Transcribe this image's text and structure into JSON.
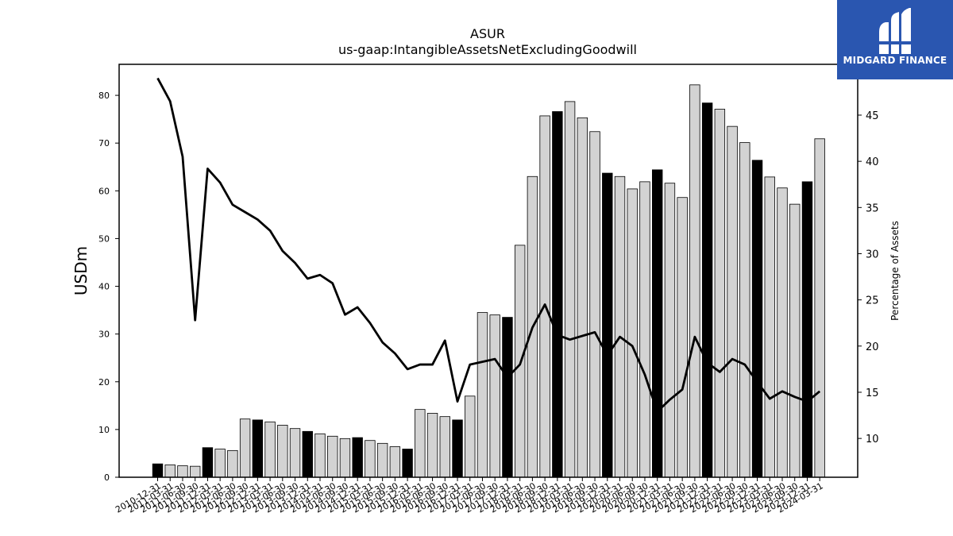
{
  "brand": {
    "name": "MIDGARD FINANCE",
    "icon": "midgard-finance-logo-icon"
  },
  "chart_data": {
    "type": "bar",
    "title": "ASUR",
    "subtitle": "us-gaap:IntangibleAssetsNetExcludingGoodwill",
    "ylabel": "USDm",
    "y2label": "Percentage of Assets",
    "ylim": [
      0,
      86.5
    ],
    "y2lim": [
      5.8,
      50.5
    ],
    "yticks": [
      0,
      10,
      20,
      30,
      40,
      50,
      60,
      70,
      80
    ],
    "y2ticks": [
      10,
      15,
      20,
      25,
      30,
      35,
      40,
      45
    ],
    "grid": false,
    "colors": {
      "bar_default": "#d3d3d3",
      "bar_highlight": "#000000",
      "line": "#000000",
      "edge": "#000000"
    },
    "categories": [
      "2010-12-31",
      "2011-03-31",
      "2011-06-30",
      "2011-09-30",
      "2011-12-31",
      "2012-03-31",
      "2012-06-30",
      "2012-09-30",
      "2012-12-31",
      "2013-03-31",
      "2013-06-30",
      "2013-09-30",
      "2013-12-31",
      "2014-03-31",
      "2014-06-30",
      "2014-09-30",
      "2014-12-31",
      "2015-03-31",
      "2015-06-30",
      "2015-09-30",
      "2015-12-31",
      "2016-03-31",
      "2016-06-30",
      "2016-09-30",
      "2016-12-31",
      "2017-03-31",
      "2017-06-30",
      "2017-09-30",
      "2017-12-31",
      "2018-03-31",
      "2018-06-30",
      "2018-09-30",
      "2018-12-31",
      "2019-03-31",
      "2019-06-30",
      "2019-09-30",
      "2019-12-31",
      "2020-03-31",
      "2020-06-30",
      "2020-09-30",
      "2020-12-31",
      "2021-03-31",
      "2021-06-30",
      "2021-09-30",
      "2021-12-31",
      "2022-03-31",
      "2022-06-30",
      "2022-09-30",
      "2022-12-31",
      "2023-03-31",
      "2023-06-30",
      "2023-09-30",
      "2023-12-31",
      "2024-03-31"
    ],
    "series": [
      {
        "kind": "bar",
        "axis": "left",
        "values": [
          2.8,
          2.6,
          2.4,
          2.3,
          6.2,
          5.9,
          5.6,
          12.2,
          12.0,
          11.6,
          10.9,
          10.2,
          9.6,
          9.1,
          8.6,
          8.1,
          8.3,
          7.7,
          7.1,
          6.4,
          5.9,
          14.2,
          13.4,
          12.7,
          12.0,
          17.0,
          34.5,
          34.0,
          33.5,
          48.6,
          63.0,
          75.7,
          76.6,
          78.7,
          75.3,
          72.4,
          63.7,
          63.0,
          60.4,
          61.9,
          64.4,
          61.6,
          58.6,
          82.2,
          78.4,
          77.1,
          73.5,
          70.1,
          66.4,
          62.9,
          60.6,
          57.2,
          61.9,
          70.9
        ],
        "highlight": [
          true,
          false,
          false,
          false,
          true,
          false,
          false,
          false,
          true,
          false,
          false,
          false,
          true,
          false,
          false,
          false,
          true,
          false,
          false,
          false,
          true,
          false,
          false,
          false,
          true,
          false,
          false,
          false,
          true,
          false,
          false,
          false,
          true,
          false,
          false,
          false,
          true,
          false,
          false,
          false,
          true,
          false,
          false,
          false,
          true,
          false,
          false,
          false,
          true,
          false,
          false,
          false,
          true,
          false
        ]
      },
      {
        "kind": "line",
        "axis": "right",
        "values": [
          49.0,
          46.5,
          40.5,
          22.8,
          39.2,
          37.7,
          35.3,
          34.5,
          33.7,
          32.5,
          30.3,
          29.0,
          27.3,
          27.7,
          26.8,
          23.4,
          24.2,
          22.5,
          20.4,
          19.2,
          17.5,
          18.0,
          18.0,
          20.6,
          14.0,
          18.0,
          18.3,
          18.6,
          16.6,
          18.0,
          22.0,
          24.5,
          21.2,
          20.7,
          21.1,
          21.5,
          19.0,
          21.0,
          20.0,
          16.9,
          12.9,
          14.2,
          15.3,
          21.0,
          18.2,
          17.2,
          18.6,
          18.0,
          16.1,
          14.3,
          15.1,
          14.5,
          14.0,
          15.1
        ]
      }
    ]
  }
}
